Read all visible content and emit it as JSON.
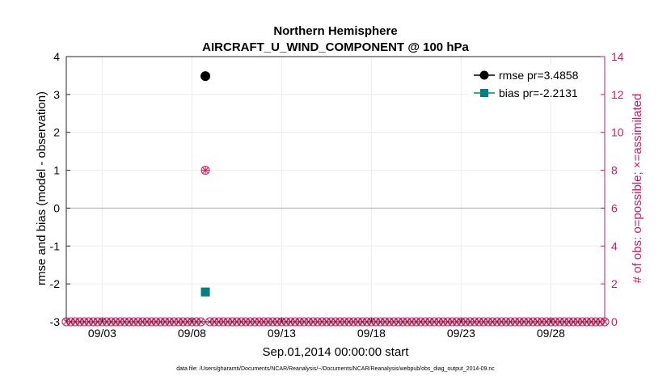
{
  "chart_data": {
    "type": "scatter",
    "title": "Northern Hemisphere",
    "subtitle": "AIRCRAFT_U_WIND_COMPONENT @ 100 hPa",
    "xlabel": "Sep.01,2014 00:00:00 start",
    "ylabel": "rmse and bias (model - observation)",
    "ylabel_right": "# of obs: o=possible; ×=assimilated",
    "footnote": "data file: /Users/gharamti/Documents/NCAR/Reanalysis/~/Documents/NCAR/Reanalysis/webpub/obs_diag_output_2014-09.nc",
    "xlim": [
      0,
      30
    ],
    "ylim": [
      -3,
      4
    ],
    "ylim_right": [
      0,
      14
    ],
    "x_ticks": [
      2,
      7,
      12,
      17,
      22,
      27
    ],
    "x_tick_labels": [
      "09/03",
      "09/08",
      "09/13",
      "09/18",
      "09/23",
      "09/28"
    ],
    "y_ticks": [
      -3,
      -2,
      -1,
      0,
      1,
      2,
      3,
      4
    ],
    "y_tick_labels": [
      "-3",
      "-2",
      "-1",
      "0",
      "1",
      "2",
      "3",
      "4"
    ],
    "y_right_ticks": [
      0,
      2,
      4,
      6,
      8,
      10,
      12,
      14
    ],
    "y_right_tick_labels": [
      "0",
      "2",
      "4",
      "6",
      "8",
      "10",
      "12",
      "14"
    ],
    "zero_line": 0,
    "series": [
      {
        "name": "rmse",
        "legend": "rmse pr=3.4858",
        "color": "#000000",
        "marker": "circle",
        "points": [
          {
            "x": 7.75,
            "y": 3.4858
          }
        ]
      },
      {
        "name": "bias",
        "legend": "bias pr=-2.2131",
        "color": "#008080",
        "marker": "square",
        "points": [
          {
            "x": 7.75,
            "y": -2.2131
          }
        ]
      }
    ],
    "obs_count_color": "#d6185c",
    "obs_possible": {
      "x_start": 0,
      "x_end": 30,
      "step": 0.25,
      "value": 0,
      "nonzero": [
        {
          "x": 7.75,
          "value": 8
        }
      ]
    },
    "obs_assimilated": {
      "x_start": 0,
      "x_end": 30,
      "step": 0.25,
      "value": 0,
      "nonzero": [
        {
          "x": 7.75,
          "value": 8
        }
      ]
    }
  }
}
